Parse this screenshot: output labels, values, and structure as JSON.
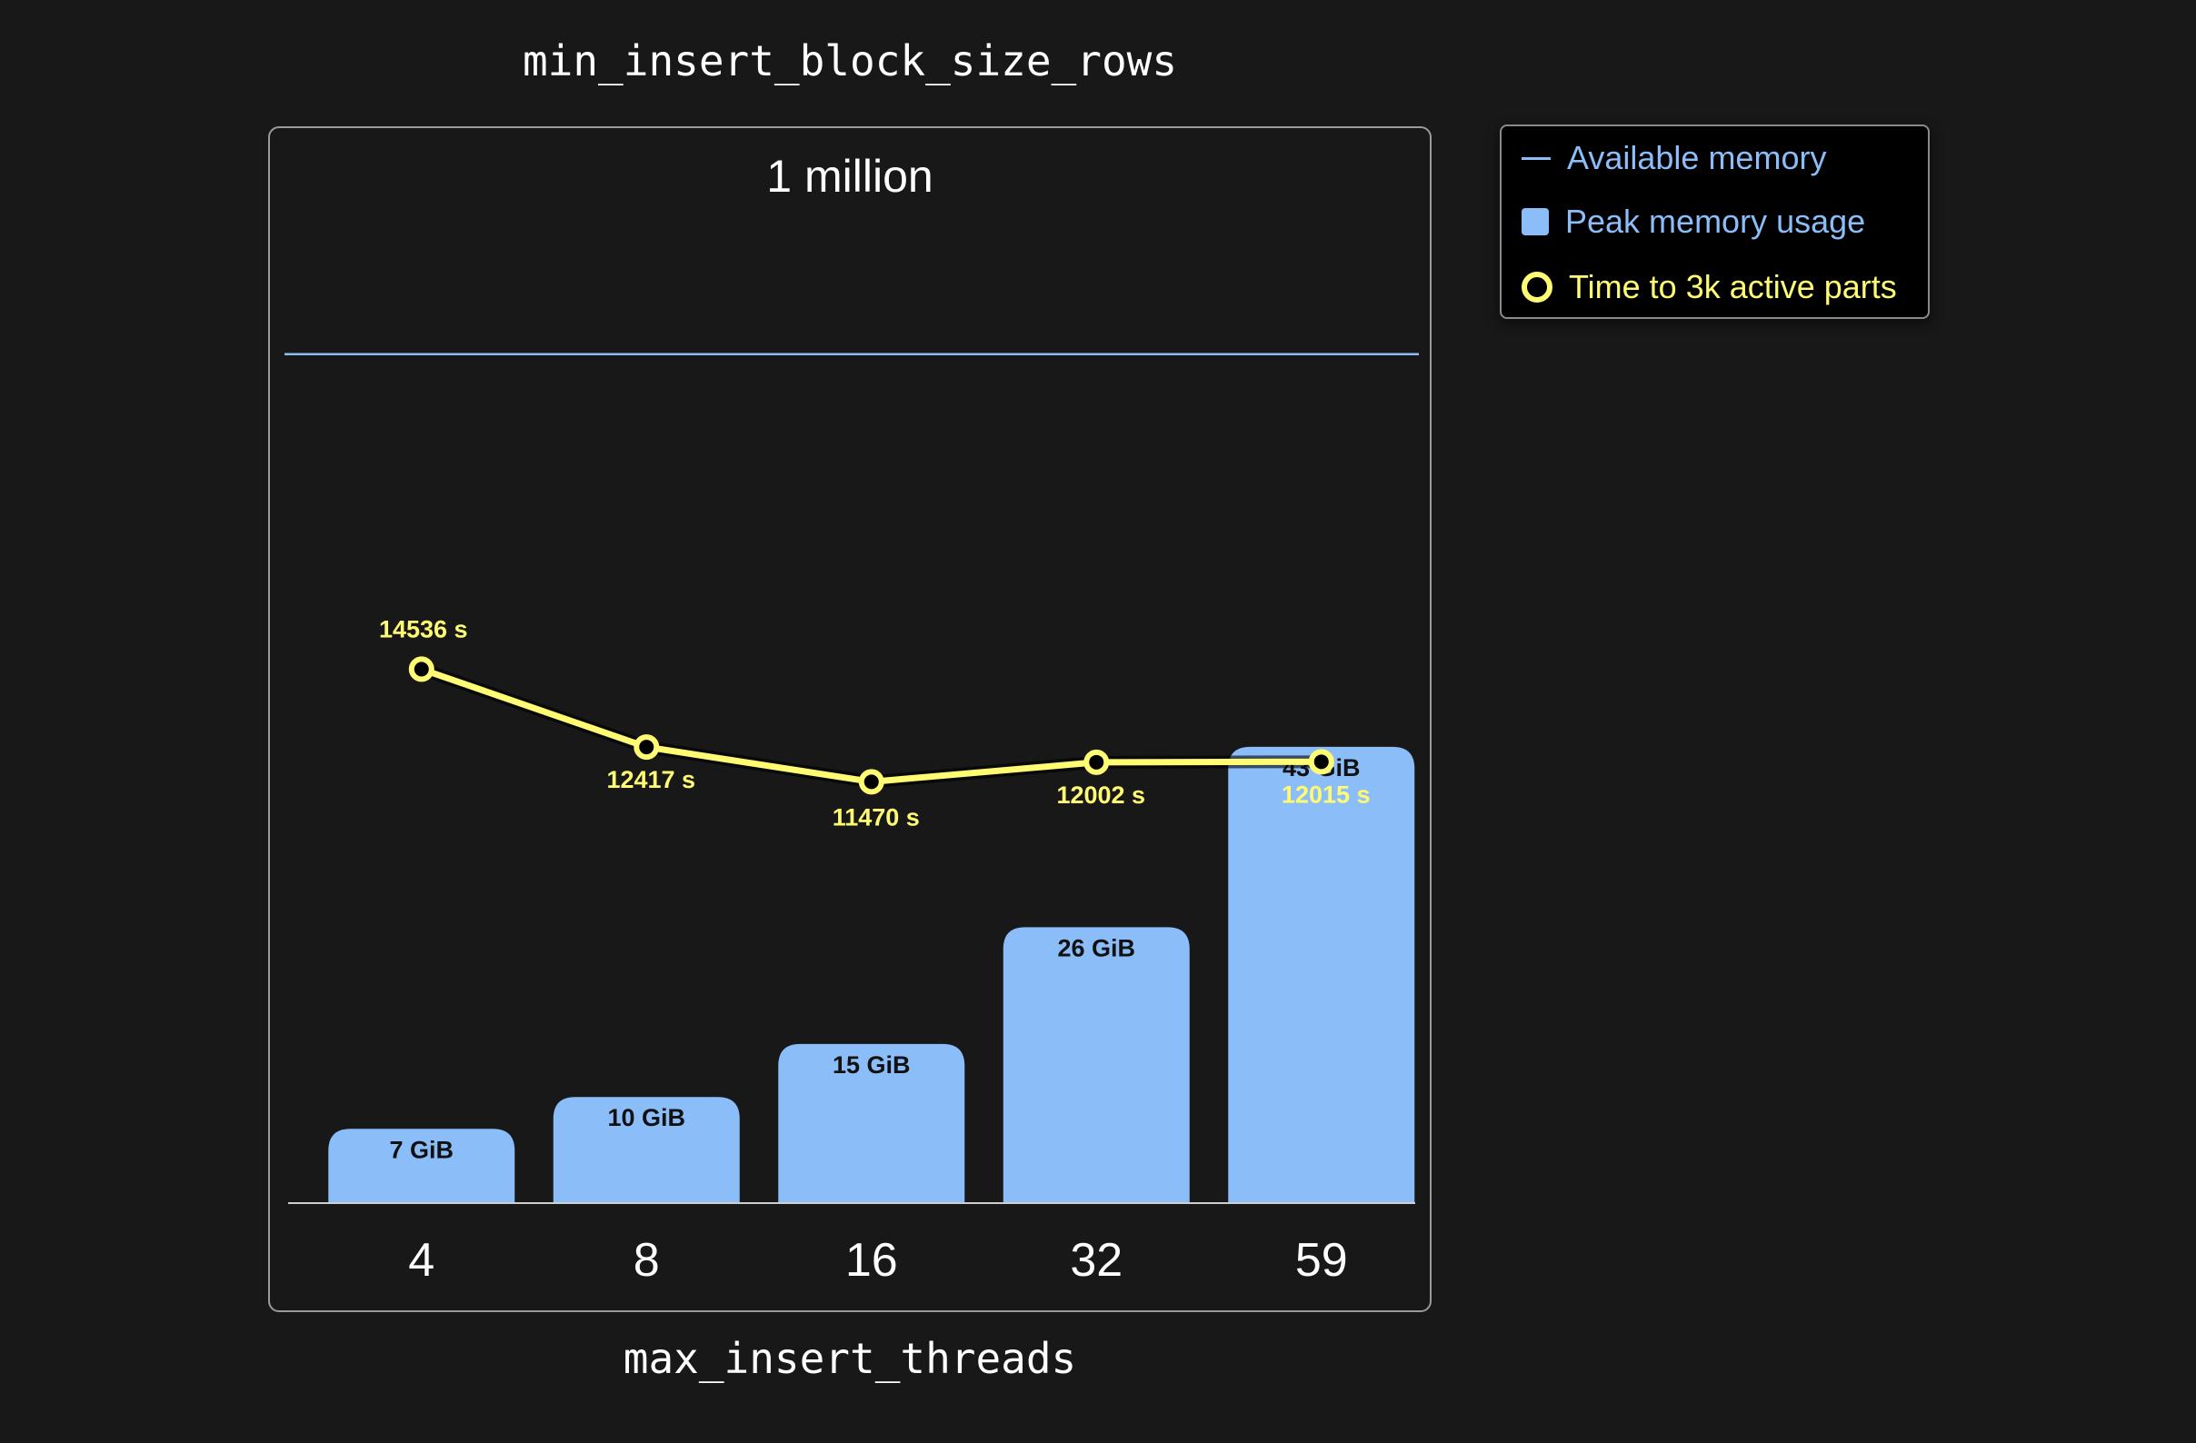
{
  "header": {
    "title": "min_insert_block_size_rows"
  },
  "footer": {
    "xlabel": "max_insert_threads"
  },
  "colors": {
    "background": "#181818",
    "memory": "#8bbdf9",
    "time": "#fffb72",
    "text": "#ffffff"
  },
  "legend": {
    "placement": "top-right, outside plot",
    "items": [
      {
        "label": "Available memory",
        "symbol": "line",
        "color": "#8bbdf9"
      },
      {
        "label": "Peak memory usage",
        "symbol": "square",
        "color": "#8bbdf9"
      },
      {
        "label": "Time to 3k active parts",
        "symbol": "circle",
        "color": "#fffb72"
      }
    ]
  },
  "chart_data": {
    "type": "bar",
    "title": "min_insert_block_size_rows",
    "subtitle": "1 million",
    "xlabel": "max_insert_threads",
    "ylabel": "",
    "categories": [
      "4",
      "8",
      "16",
      "32",
      "59"
    ],
    "grid": false,
    "memory_axis": {
      "unit": "GiB",
      "range": [
        0,
        90
      ]
    },
    "time_axis": {
      "unit": "s",
      "range": [
        0,
        26000
      ]
    },
    "available_memory": {
      "value": 80,
      "unit": "GiB",
      "estimated": true
    },
    "series": [
      {
        "name": "Peak memory usage",
        "type": "bar",
        "values": [
          7,
          10,
          15,
          26,
          43
        ],
        "labels": [
          "7 GiB",
          "10 GiB",
          "15 GiB",
          "26 GiB",
          "43 GiB"
        ]
      },
      {
        "name": "Time to 3k active parts",
        "type": "line",
        "values": [
          14536,
          12417,
          11470,
          12002,
          12015
        ],
        "labels": [
          "14536 s",
          "12417 s",
          "11470 s",
          "12002 s",
          "12015 s"
        ]
      }
    ]
  }
}
